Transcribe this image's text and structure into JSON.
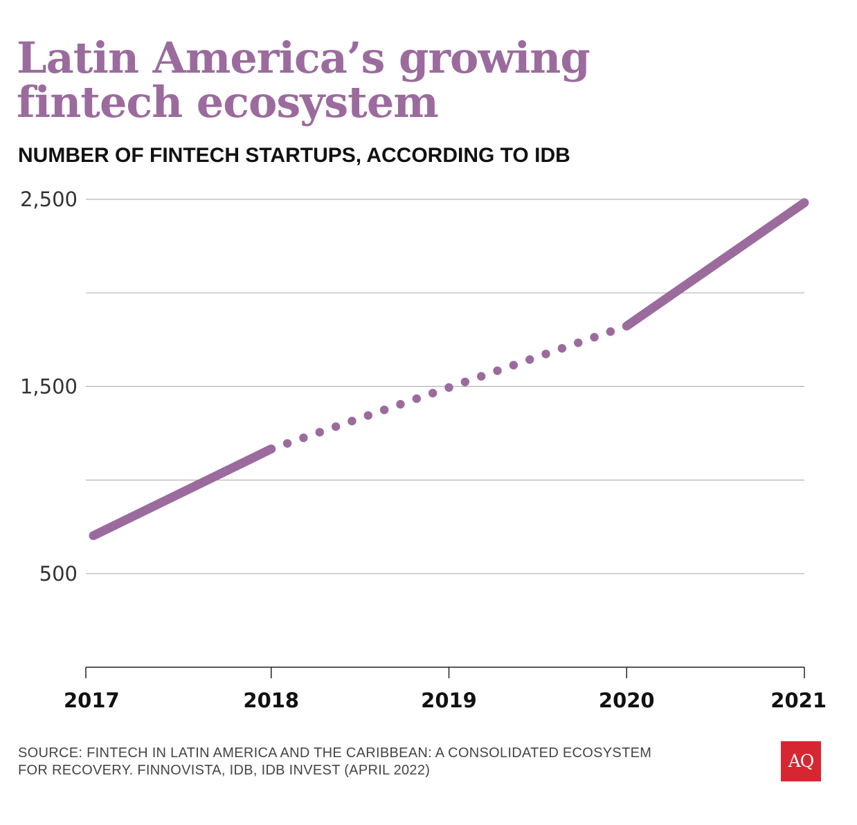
{
  "title_lines": [
    "Latin America’s growing",
    "fintech ecosystem"
  ],
  "subtitle": "NUMBER OF FINTECH STARTUPS, ACCORDING TO IDB",
  "source_lines": [
    "SOURCE: FINTECH IN LATIN AMERICA AND THE CARIBBEAN: A CONSOLIDATED ECOSYSTEM",
    "FOR RECOVERY. FINNOVISTA, IDB, IDB INVEST (APRIL 2022)"
  ],
  "logo_text": "AQ",
  "colors": {
    "accent": "#9b6b9e",
    "grid": "#b3b3b3",
    "axis": "#222222",
    "logo_bg": "#d62631"
  },
  "chart_data": {
    "type": "line",
    "title": "Latin America’s growing fintech ecosystem",
    "subtitle": "NUMBER OF FINTECH STARTUPS, ACCORDING TO IDB",
    "x": [
      2017,
      2018,
      2019,
      2020,
      2021
    ],
    "x_tick_labels": [
      "2017",
      "2018",
      "2019",
      "2020",
      "2021"
    ],
    "series": [
      {
        "name": "Fintech startups",
        "points": [
          {
            "x": 2017,
            "y": 703
          },
          {
            "x": 2018,
            "y": 1166
          },
          {
            "x": 2020,
            "y": 1823
          },
          {
            "x": 2021,
            "y": 2482
          }
        ],
        "segments": [
          {
            "from": 2017,
            "to": 2018,
            "style": "solid"
          },
          {
            "from": 2018,
            "to": 2020,
            "style": "dotted"
          },
          {
            "from": 2020,
            "to": 2021,
            "style": "solid"
          }
        ]
      }
    ],
    "y_ticks": [
      500,
      1000,
      1500,
      2000,
      2500
    ],
    "y_tick_labels": [
      "500",
      "",
      "1,500",
      "",
      "2,500"
    ],
    "ylim": [
      0,
      2500
    ],
    "xlim": [
      2017,
      2021
    ],
    "grid": true,
    "xlabel": "",
    "ylabel": ""
  }
}
